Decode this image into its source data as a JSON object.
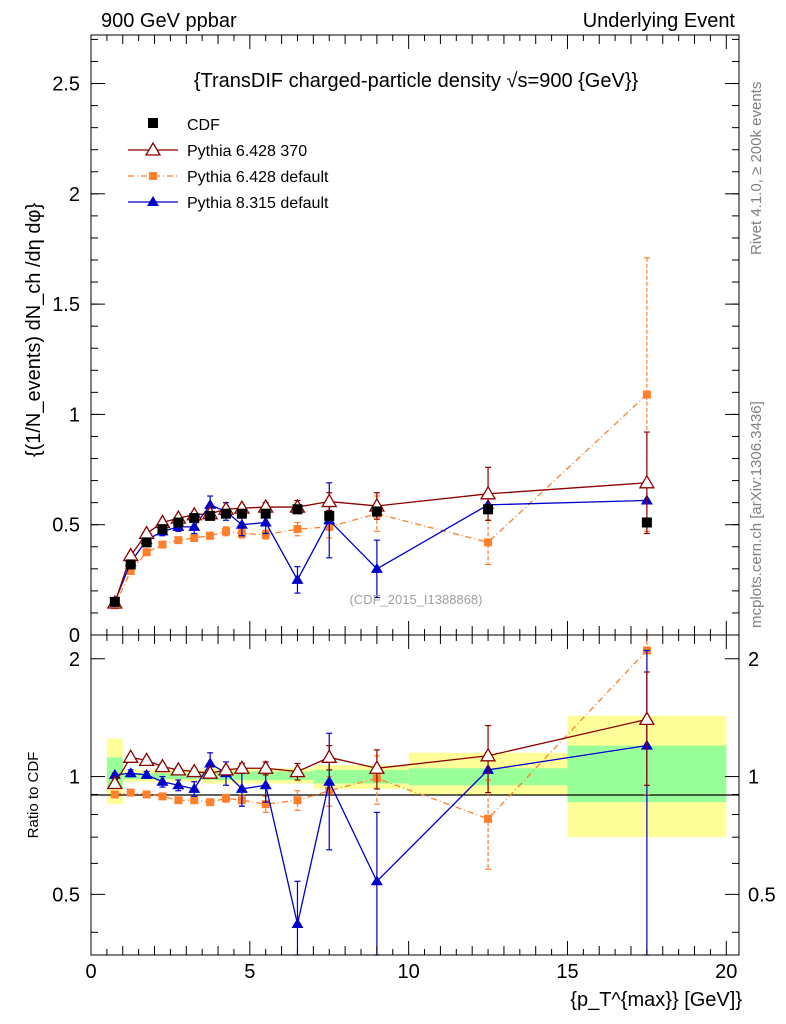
{
  "header": {
    "left": "900 GeV ppbar",
    "right": "Underlying Event"
  },
  "side_labels": {
    "rivet": "Rivet 4.1.0, ≥ 200k events",
    "source": "mcplots.cern.ch [arXiv:1306.3436]"
  },
  "watermark": "(CDF_2015_I1388868)",
  "colors": {
    "cdf": "#000000",
    "p6_370": "#8b0000",
    "p6_default": "#ff7f2a",
    "p8": "#0000cc",
    "band_yellow": "#ffff99",
    "band_green": "#99ff99"
  },
  "chart_data": [
    {
      "type": "scatter",
      "title": "{TransDIF charged-particle density √s=900 {GeV}}",
      "ylabel": "{(1/N_events) dN_ch /dη dφ}",
      "ylim": [
        0,
        2.72
      ],
      "xlim": [
        0,
        20.4
      ],
      "yticks": [
        {
          "v": 0.5,
          "label": "0.5"
        },
        {
          "v": 1,
          "label": "1"
        },
        {
          "v": 1.5,
          "label": "1.5"
        },
        {
          "v": 2,
          "label": "2"
        },
        {
          "v": 2.5,
          "label": "2.5"
        },
        {
          "v": 0,
          "label": "0"
        }
      ],
      "legend": [
        "CDF",
        "Pythia 6.428 370",
        "Pythia 6.428 default",
        "Pythia 8.315 default"
      ],
      "series": [
        {
          "name": "CDF",
          "style": "data",
          "x": [
            0.75,
            1.25,
            1.75,
            2.25,
            2.75,
            3.25,
            3.75,
            4.25,
            4.75,
            5.5,
            6.5,
            7.5,
            9.0,
            12.5,
            17.5
          ],
          "y": [
            0.15,
            0.32,
            0.42,
            0.48,
            0.51,
            0.53,
            0.54,
            0.55,
            0.55,
            0.55,
            0.57,
            0.54,
            0.56,
            0.57,
            0.51
          ],
          "err": [
            0.01,
            0.01,
            0.01,
            0.01,
            0.01,
            0.01,
            0.01,
            0.01,
            0.01,
            0.01,
            0.01,
            0.02,
            0.02,
            0.02,
            0.02
          ]
        },
        {
          "name": "Pythia 6.428 370",
          "style": "open-triangle",
          "x": [
            0.75,
            1.25,
            1.75,
            2.25,
            2.75,
            3.25,
            3.75,
            4.25,
            4.75,
            5.5,
            6.5,
            7.5,
            9.0,
            12.5,
            17.5
          ],
          "y": [
            0.145,
            0.36,
            0.46,
            0.51,
            0.53,
            0.545,
            0.55,
            0.57,
            0.575,
            0.58,
            0.58,
            0.605,
            0.585,
            0.64,
            0.69
          ],
          "err": [
            0.005,
            0.01,
            0.01,
            0.01,
            0.01,
            0.01,
            0.01,
            0.01,
            0.015,
            0.02,
            0.03,
            0.04,
            0.06,
            0.12,
            0.23
          ]
        },
        {
          "name": "Pythia 6.428 default",
          "style": "square",
          "x": [
            0.75,
            1.25,
            1.75,
            2.25,
            2.75,
            3.25,
            3.75,
            4.25,
            4.75,
            5.5,
            6.5,
            7.5,
            9.0,
            12.5,
            17.5
          ],
          "y": [
            0.135,
            0.29,
            0.375,
            0.41,
            0.43,
            0.44,
            0.45,
            0.47,
            0.46,
            0.455,
            0.48,
            0.49,
            0.55,
            0.42,
            1.09
          ],
          "err": [
            0.005,
            0.01,
            0.01,
            0.01,
            0.01,
            0.015,
            0.015,
            0.02,
            0.02,
            0.02,
            0.03,
            0.05,
            0.08,
            0.1,
            0.62
          ]
        },
        {
          "name": "Pythia 8.315 default",
          "style": "filled-triangle",
          "x": [
            0.75,
            1.25,
            1.75,
            2.25,
            2.75,
            3.25,
            3.75,
            4.25,
            4.75,
            5.5,
            6.5,
            7.5,
            9.0,
            12.5,
            17.5
          ],
          "y": [
            0.15,
            0.33,
            0.43,
            0.47,
            0.49,
            0.49,
            0.59,
            0.56,
            0.5,
            0.51,
            0.25,
            0.52,
            0.3,
            0.59,
            0.61
          ],
          "err": [
            0.005,
            0.01,
            0.015,
            0.02,
            0.02,
            0.03,
            0.04,
            0.04,
            0.05,
            0.05,
            0.06,
            0.17,
            0.13,
            0.0,
            0.0
          ]
        }
      ]
    },
    {
      "type": "scatter",
      "title": "",
      "xlabel": "{p_T^{max}} [GeV]}",
      "ylabel": "Ratio to CDF",
      "ylim": [
        0.35,
        2.3
      ],
      "yscale": "log",
      "xlim": [
        0,
        20.4
      ],
      "xticks": [
        {
          "v": 0,
          "label": "0"
        },
        {
          "v": 5,
          "label": "5"
        },
        {
          "v": 10,
          "label": "10"
        },
        {
          "v": 15,
          "label": "15"
        },
        {
          "v": 20,
          "label": "20"
        }
      ],
      "yticks": [
        {
          "v": 0.5,
          "label": "0.5"
        },
        {
          "v": 1,
          "label": "1"
        },
        {
          "v": 2,
          "label": "2"
        }
      ],
      "bands": [
        {
          "x0": 0.5,
          "x1": 1.0,
          "yellow": [
            0.85,
            1.25
          ],
          "green": [
            0.93,
            1.12
          ]
        },
        {
          "x0": 1.0,
          "x1": 3.5,
          "yellow": [
            0.97,
            1.04
          ],
          "green": [
            0.985,
            1.02
          ]
        },
        {
          "x0": 3.5,
          "x1": 7.0,
          "yellow": [
            0.96,
            1.05
          ],
          "green": [
            0.98,
            1.03
          ]
        },
        {
          "x0": 7.0,
          "x1": 10.0,
          "yellow": [
            0.93,
            1.07
          ],
          "green": [
            0.96,
            1.04
          ]
        },
        {
          "x0": 10.0,
          "x1": 15.0,
          "yellow": [
            0.9,
            1.15
          ],
          "green": [
            0.95,
            1.05
          ]
        },
        {
          "x0": 15.0,
          "x1": 20.0,
          "yellow": [
            0.7,
            1.43
          ],
          "green": [
            0.86,
            1.2
          ]
        }
      ],
      "series": [
        {
          "name": "Pythia 6.428 370",
          "style": "open-triangle",
          "x": [
            0.75,
            1.25,
            1.75,
            2.25,
            2.75,
            3.25,
            3.75,
            4.25,
            4.75,
            5.5,
            6.5,
            7.5,
            9.0,
            12.5,
            17.5
          ],
          "y": [
            0.96,
            1.12,
            1.1,
            1.06,
            1.04,
            1.03,
            1.02,
            1.04,
            1.05,
            1.05,
            1.03,
            1.12,
            1.05,
            1.13,
            1.4
          ],
          "err": [
            0.02,
            0.02,
            0.02,
            0.02,
            0.02,
            0.02,
            0.02,
            0.02,
            0.03,
            0.04,
            0.05,
            0.08,
            0.12,
            0.22,
            0.45
          ]
        },
        {
          "name": "Pythia 6.428 default",
          "style": "square",
          "x": [
            0.75,
            1.25,
            1.75,
            2.25,
            2.75,
            3.25,
            3.75,
            4.25,
            4.75,
            5.5,
            6.5,
            7.5,
            9.0,
            12.5,
            17.5
          ],
          "y": [
            0.9,
            0.91,
            0.9,
            0.89,
            0.87,
            0.87,
            0.86,
            0.88,
            0.87,
            0.85,
            0.87,
            0.92,
            0.99,
            0.78,
            2.1
          ],
          "err": [
            0.01,
            0.01,
            0.01,
            0.01,
            0.01,
            0.015,
            0.015,
            0.02,
            0.03,
            0.04,
            0.05,
            0.08,
            0.14,
            0.2,
            1.2
          ]
        },
        {
          "name": "Pythia 8.315 default",
          "style": "filled-triangle",
          "x": [
            0.75,
            1.25,
            1.75,
            2.25,
            2.75,
            3.25,
            3.75,
            4.25,
            4.75,
            5.5,
            6.5,
            7.5,
            9.0,
            12.5,
            17.5
          ],
          "y": [
            1.01,
            1.02,
            1.01,
            0.97,
            0.95,
            0.93,
            1.08,
            1.02,
            0.93,
            0.95,
            0.42,
            0.97,
            0.54,
            1.04,
            1.2
          ],
          "err": [
            0.01,
            0.02,
            0.02,
            0.03,
            0.03,
            0.04,
            0.07,
            0.07,
            0.09,
            0.09,
            0.12,
            0.32,
            0.27,
            0.0,
            0.9
          ]
        }
      ]
    }
  ]
}
